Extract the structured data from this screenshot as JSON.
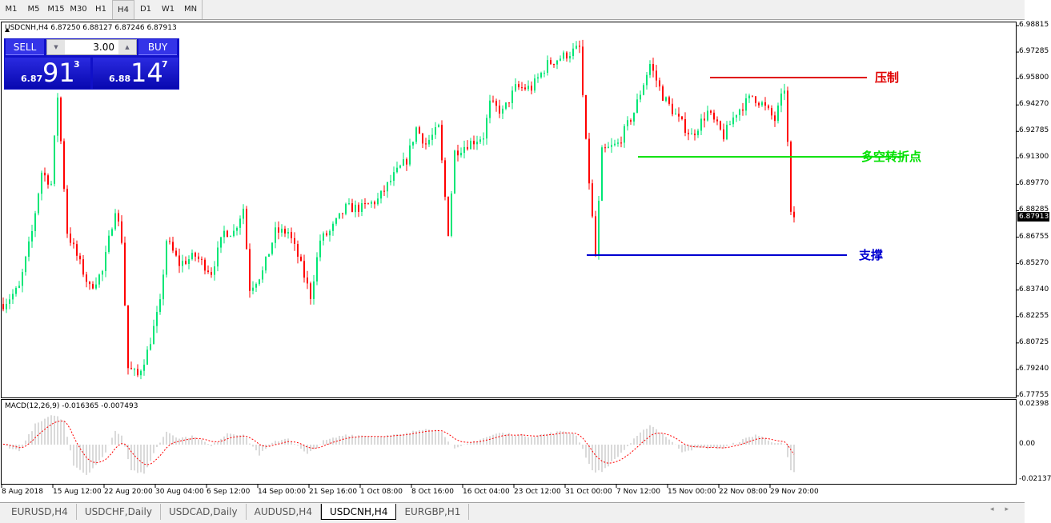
{
  "timeframes": [
    "M1",
    "M5",
    "M15",
    "M30",
    "H1",
    "H4",
    "D1",
    "W1",
    "MN"
  ],
  "active_timeframe": "H4",
  "symbol_line": "USDCNH,H4  6.87250 6.88127 6.87246 6.87913",
  "trade_panel": {
    "sell_label": "SELL",
    "buy_label": "BUY",
    "lot": "3.00",
    "sell_pre": "6.87",
    "sell_big": "91",
    "sell_sup": "3",
    "buy_pre": "6.88",
    "buy_big": "14",
    "buy_sup": "7"
  },
  "price_axis": [
    "6.98815",
    "6.97285",
    "6.95800",
    "6.94270",
    "6.92785",
    "6.91300",
    "6.89770",
    "6.88285",
    "6.86755",
    "6.85270",
    "6.83740",
    "6.82255",
    "6.80725",
    "6.79240",
    "6.77755"
  ],
  "current_price": "6.87913",
  "time_axis": [
    "8 Aug 2018",
    "15 Aug 12:00",
    "22 Aug 20:00",
    "30 Aug 04:00",
    "6 Sep 12:00",
    "14 Sep 00:00",
    "21 Sep 16:00",
    "1 Oct 08:00",
    "8 Oct 16:00",
    "16 Oct 04:00",
    "23 Oct 12:00",
    "31 Oct 00:00",
    "7 Nov 12:00",
    "15 Nov 00:00",
    "22 Nov 08:00",
    "29 Nov 20:00"
  ],
  "levels": [
    {
      "label": "压制",
      "price": 6.9586,
      "color": "#e00000"
    },
    {
      "label": "多空转折点",
      "price": 6.9135,
      "color": "#00e000"
    },
    {
      "label": "支撑",
      "price": 6.8576,
      "color": "#0000d0"
    }
  ],
  "colors": {
    "up": "#00e676",
    "down": "#ff0000",
    "macd_hist": "#c0c0c0",
    "macd_signal": "#ff0000"
  },
  "macd": {
    "label": "MACD(12,26,9) -0.016365 -0.007493",
    "axis": [
      "0.02398",
      "0.00",
      "-0.02137"
    ]
  },
  "tabs": [
    "EURUSD,H4",
    "USDCHF,Daily",
    "USDCAD,Daily",
    "AUDUSD,H4",
    "USDCNH,H4",
    "EURGBP,H1"
  ],
  "active_tab": "USDCNH,H4",
  "chart_data": {
    "type": "candlestick",
    "symbol": "USDCNH",
    "timeframe": "H4",
    "ylim": [
      6.77755,
      6.98815
    ],
    "close_waypoints": [
      [
        0,
        6.8298
      ],
      [
        5,
        6.8389
      ],
      [
        9,
        6.8708
      ],
      [
        12,
        6.9049
      ],
      [
        15,
        6.8981
      ],
      [
        17,
        6.9481
      ],
      [
        20,
        6.8708
      ],
      [
        24,
        6.8526
      ],
      [
        27,
        6.8389
      ],
      [
        31,
        6.848
      ],
      [
        35,
        6.8844
      ],
      [
        37,
        6.8662
      ],
      [
        39,
        6.7934
      ],
      [
        42,
        6.7889
      ],
      [
        45,
        6.8025
      ],
      [
        49,
        6.8298
      ],
      [
        51,
        6.8662
      ],
      [
        55,
        6.8526
      ],
      [
        60,
        6.8571
      ],
      [
        65,
        6.848
      ],
      [
        69,
        6.8708
      ],
      [
        72,
        6.8708
      ],
      [
        75,
        6.8844
      ],
      [
        77,
        6.8389
      ],
      [
        81,
        6.848
      ],
      [
        85,
        6.8708
      ],
      [
        89,
        6.8708
      ],
      [
        92,
        6.8571
      ],
      [
        96,
        6.8344
      ],
      [
        99,
        6.8662
      ],
      [
        102,
        6.8708
      ],
      [
        107,
        6.8844
      ],
      [
        112,
        6.8844
      ],
      [
        117,
        6.889
      ],
      [
        122,
        6.9026
      ],
      [
        126,
        6.9117
      ],
      [
        129,
        6.9299
      ],
      [
        132,
        6.9208
      ],
      [
        136,
        6.9299
      ],
      [
        139,
        6.8708
      ],
      [
        141,
        6.9162
      ],
      [
        145,
        6.9208
      ],
      [
        150,
        6.9254
      ],
      [
        152,
        6.9436
      ],
      [
        156,
        6.939
      ],
      [
        160,
        6.9527
      ],
      [
        165,
        6.9527
      ],
      [
        170,
        6.9663
      ],
      [
        175,
        6.9708
      ],
      [
        180,
        6.9754
      ],
      [
        182,
        6.9208
      ],
      [
        185,
        6.8571
      ],
      [
        187,
        6.9162
      ],
      [
        192,
        6.9208
      ],
      [
        197,
        6.939
      ],
      [
        202,
        6.9663
      ],
      [
        206,
        6.9481
      ],
      [
        211,
        6.9345
      ],
      [
        215,
        6.9254
      ],
      [
        220,
        6.939
      ],
      [
        225,
        6.9254
      ],
      [
        229,
        6.939
      ],
      [
        234,
        6.9481
      ],
      [
        237,
        6.9436
      ],
      [
        241,
        6.9345
      ],
      [
        244,
        6.9527
      ],
      [
        245,
        6.9208
      ],
      [
        246,
        6.8799
      ],
      [
        247,
        6.8791
      ]
    ],
    "macd_hist_waypoints": [
      [
        0,
        0
      ],
      [
        5,
        -0.004
      ],
      [
        10,
        0.012
      ],
      [
        16,
        0.018
      ],
      [
        19,
        0.014
      ],
      [
        22,
        -0.012
      ],
      [
        26,
        -0.018
      ],
      [
        31,
        -0.008
      ],
      [
        35,
        0.008
      ],
      [
        37,
        0.006
      ],
      [
        40,
        -0.015
      ],
      [
        44,
        -0.018
      ],
      [
        47,
        -0.005
      ],
      [
        51,
        0.008
      ],
      [
        55,
        0.004
      ],
      [
        60,
        0.005
      ],
      [
        65,
        -0.001
      ],
      [
        70,
        0.007
      ],
      [
        75,
        0.006
      ],
      [
        80,
        -0.006
      ],
      [
        85,
        0.002
      ],
      [
        89,
        0.004
      ],
      [
        95,
        -0.006
      ],
      [
        100,
        0.002
      ],
      [
        107,
        0.006
      ],
      [
        117,
        0.005
      ],
      [
        125,
        0.006
      ],
      [
        132,
        0.01
      ],
      [
        137,
        0.008
      ],
      [
        141,
        -0.003
      ],
      [
        147,
        0.002
      ],
      [
        155,
        0.007
      ],
      [
        165,
        0.005
      ],
      [
        175,
        0.008
      ],
      [
        179,
        0.006
      ],
      [
        184,
        -0.016
      ],
      [
        187,
        -0.016
      ],
      [
        192,
        -0.007
      ],
      [
        197,
        0.003
      ],
      [
        202,
        0.012
      ],
      [
        207,
        0.005
      ],
      [
        212,
        -0.004
      ],
      [
        217,
        -0.002
      ],
      [
        225,
        -0.002
      ],
      [
        235,
        0.006
      ],
      [
        240,
        0.002
      ],
      [
        244,
        0
      ],
      [
        246,
        -0.016
      ],
      [
        247,
        -0.017
      ]
    ]
  }
}
